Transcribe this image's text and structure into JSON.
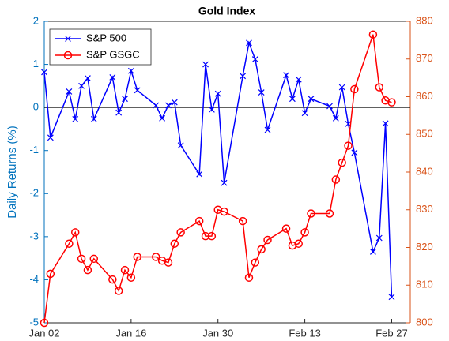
{
  "chart_data": {
    "type": "line",
    "title": "Gold Index",
    "ylabel": "Daily Returns (%)",
    "x": [
      "Jan 02",
      "Jan 03",
      "Jan 06",
      "Jan 07",
      "Jan 08",
      "Jan 09",
      "Jan 10",
      "Jan 13",
      "Jan 14",
      "Jan 15",
      "Jan 16",
      "Jan 17",
      "Jan 20",
      "Jan 21",
      "Jan 22",
      "Jan 23",
      "Jan 24",
      "Jan 27",
      "Jan 28",
      "Jan 29",
      "Jan 30",
      "Jan 31",
      "Feb 03",
      "Feb 04",
      "Feb 05",
      "Feb 06",
      "Feb 07",
      "Feb 10",
      "Feb 11",
      "Feb 12",
      "Feb 13",
      "Feb 14",
      "Feb 17",
      "Feb 18",
      "Feb 19",
      "Feb 20",
      "Feb 21",
      "Feb 24",
      "Feb 25",
      "Feb 26",
      "Feb 27"
    ],
    "series": [
      {
        "name": "S&P 500",
        "color": "#0000ff",
        "marker": "x",
        "axis": "y",
        "values": [
          0.82,
          -0.7,
          0.37,
          -0.27,
          0.5,
          0.68,
          -0.27,
          0.7,
          -0.12,
          0.2,
          0.85,
          0.4,
          0.05,
          -0.25,
          0.05,
          0.12,
          -0.88,
          -1.55,
          1.0,
          -0.05,
          0.32,
          -1.75,
          0.73,
          1.5,
          1.12,
          0.35,
          -0.52,
          0.75,
          0.2,
          0.65,
          -0.13,
          0.2,
          0.03,
          -0.25,
          0.47,
          -0.38,
          -1.05,
          -3.35,
          -3.03,
          -0.37,
          -4.4
        ]
      },
      {
        "name": "S&P GSGC",
        "color": "#ff0000",
        "marker": "o",
        "axis": "y2",
        "values": [
          800,
          813,
          821,
          824,
          817,
          814,
          817,
          811.5,
          808.5,
          814,
          812,
          817.5,
          817.5,
          816.5,
          816,
          821,
          824,
          827,
          823,
          823,
          830,
          829.5,
          827,
          812,
          816,
          819.5,
          822,
          825,
          820.5,
          821,
          824,
          829,
          829,
          838,
          842.5,
          847,
          862,
          876.5,
          862.5,
          859,
          858.5
        ]
      }
    ],
    "xlim": [
      "Jan 02",
      "Mar 02"
    ],
    "xticks": [
      "Jan 02",
      "Jan 16",
      "Jan 30",
      "Feb 13",
      "Feb 27"
    ],
    "ylim": [
      -5,
      2
    ],
    "yticks": [
      -5,
      -4,
      -3,
      -2,
      -1,
      0,
      1,
      2
    ],
    "ycolor": "#0072bd",
    "y2lim": [
      800,
      880
    ],
    "y2ticks": [
      800,
      810,
      820,
      830,
      840,
      850,
      860,
      870,
      880
    ],
    "y2color": "#d95319",
    "hline": 0,
    "legend": "upper left"
  }
}
